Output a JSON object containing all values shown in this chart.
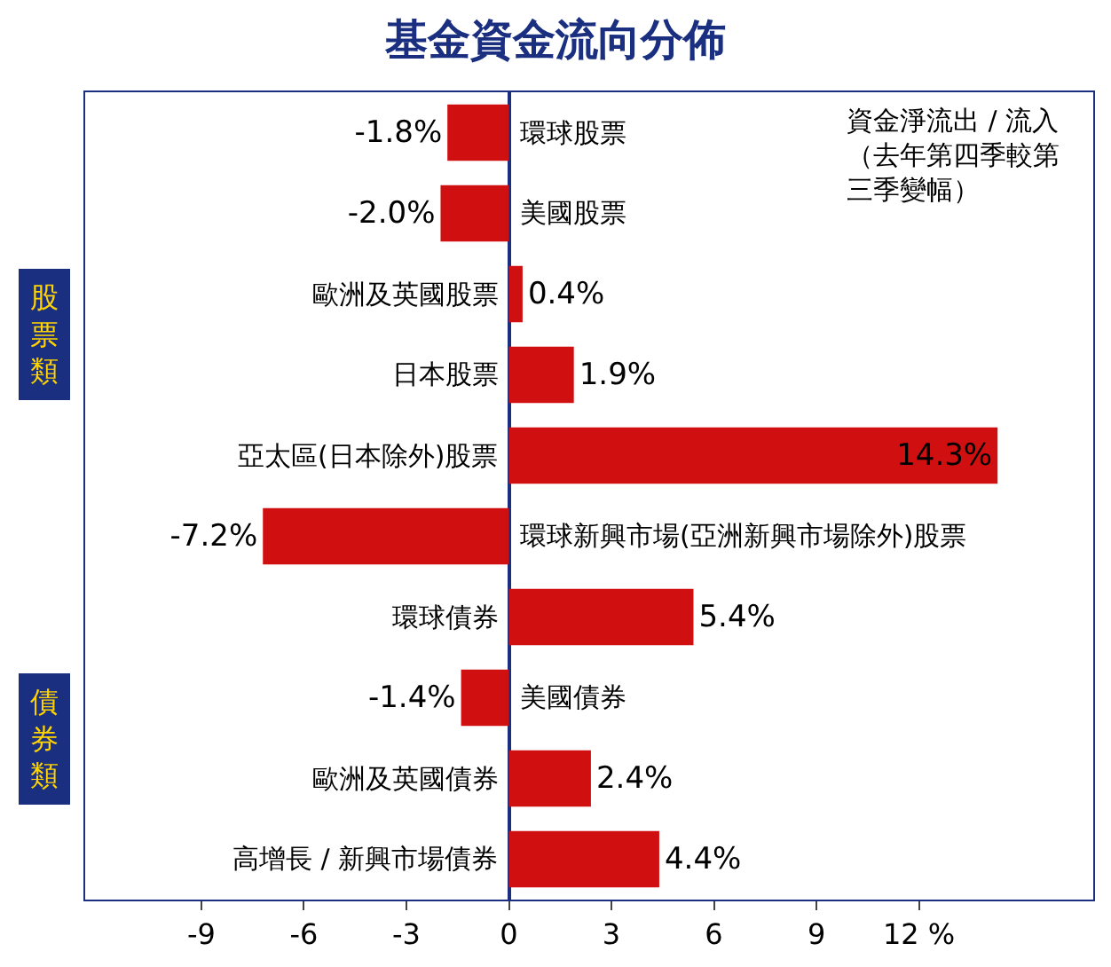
{
  "chart_data": {
    "type": "bar",
    "orientation": "horizontal",
    "title": "基金資金流向分佈",
    "categories": [
      "環球股票",
      "美國股票",
      "歐洲及英國股票",
      "日本股票",
      "亞太區(日本除外)股票",
      "環球新興市場(亞洲新興市場除外)股票",
      "環球債券",
      "美國債券",
      "歐洲及英國債券",
      "高增長 / 新興市場債券"
    ],
    "values": [
      -1.8,
      -2.0,
      0.4,
      1.9,
      14.3,
      -7.2,
      5.4,
      -1.4,
      2.4,
      4.4
    ],
    "value_labels": [
      "-1.8%",
      "-2.0%",
      "0.4%",
      "1.9%",
      "14.3%",
      "-7.2%",
      "5.4%",
      "-1.4%",
      "2.4%",
      "4.4%"
    ],
    "color": "#d01010",
    "xlim": [
      -12.4,
      17.1
    ],
    "xticks": [
      -9,
      -6,
      -3,
      0,
      3,
      6,
      9,
      {
        "value": 12,
        "label": "12 %"
      }
    ],
    "tick_labels": "x",
    "grid": false,
    "annotations": [
      "資金淨流出 / 流入（去年第四季較第三季變幅）",
      "股票類",
      "債券類"
    ]
  }
}
